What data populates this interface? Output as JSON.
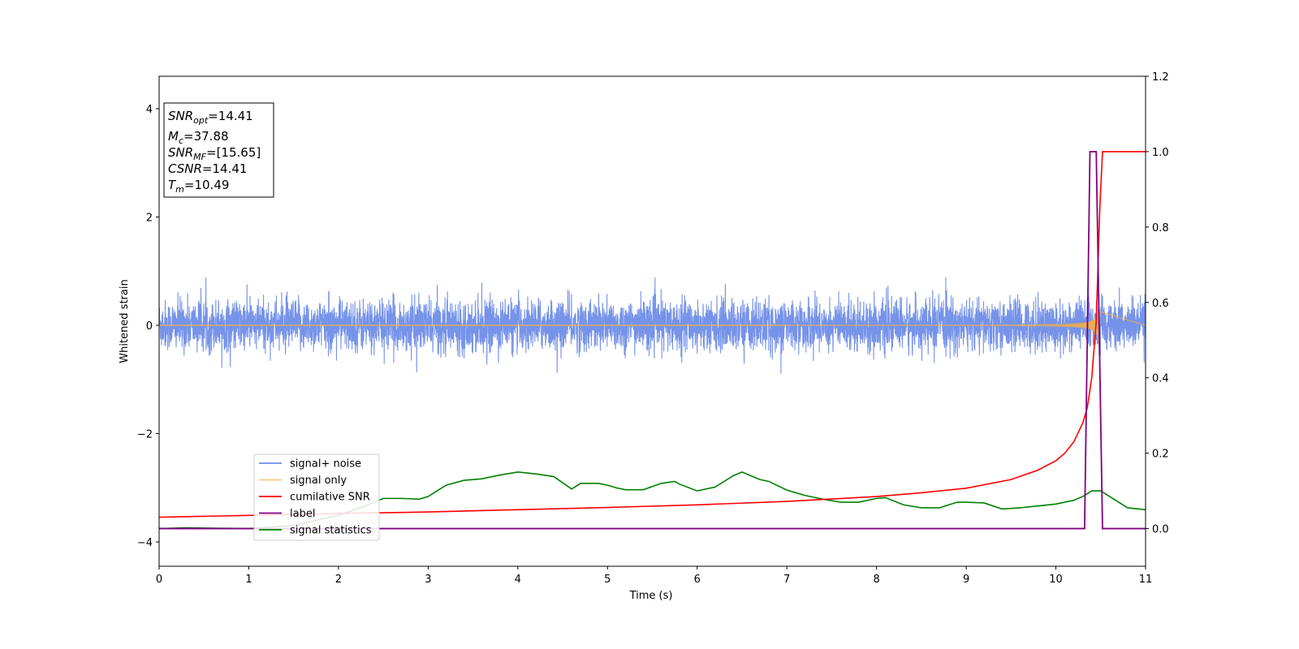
{
  "chart_data": {
    "type": "line",
    "xlabel": "Time (s)",
    "ylabel": "Whitened strain",
    "y2label": "",
    "xlim": [
      0,
      11
    ],
    "ylim": [
      -4.45,
      4.6
    ],
    "y2lim": [
      -0.1,
      1.2
    ],
    "xticks": [
      0,
      1,
      2,
      3,
      4,
      5,
      6,
      7,
      8,
      9,
      10,
      11
    ],
    "yticks": [
      -4,
      -2,
      0,
      2,
      4
    ],
    "yticklabels": [
      "−4",
      "−2",
      "0",
      "2",
      "4"
    ],
    "y2ticks": [
      0.0,
      0.2,
      0.4,
      0.6,
      0.8,
      1.0,
      1.2
    ],
    "y2ticklabels": [
      "0.0",
      "0.2",
      "0.4",
      "0.6",
      "0.8",
      "1.0",
      "1.2"
    ],
    "grid": false,
    "legend_position": "lower-left",
    "annotation": {
      "snr_opt": {
        "symbol": "SNR",
        "sub": "opt",
        "value": "=14.41"
      },
      "mc": {
        "symbol": "M",
        "sub": "c",
        "value": "=37.88"
      },
      "snr_mf": {
        "symbol": "SNR",
        "sub": "MF",
        "value": "=[15.65]"
      },
      "csnr": {
        "symbol": "CSNR",
        "sub": "",
        "value": "=14.41"
      },
      "tm": {
        "symbol": "T",
        "sub": "m",
        "value": "=10.49"
      }
    },
    "series": [
      {
        "name": "signal+ noise",
        "axis": "left",
        "color": "#6f8de8",
        "description": "noisy whitened strain, approx. amplitude ±0.55 with peaks to about ±1.1",
        "amplitude": 0.55,
        "x_start": 0,
        "x_end": 11
      },
      {
        "name": "signal only",
        "axis": "left",
        "color": "#f5b041",
        "description": "chirp waveform growing toward merger near t=10.49",
        "merger_time": 10.49,
        "peak_amplitude": 0.6
      },
      {
        "name": "cumilative SNR",
        "axis": "right",
        "color": "#ff0000",
        "x": [
          0,
          1,
          2,
          3,
          4,
          5,
          6,
          7,
          8,
          8.5,
          9,
          9.5,
          9.8,
          10.0,
          10.1,
          10.2,
          10.3,
          10.35,
          10.4,
          10.45,
          10.49,
          10.52,
          11
        ],
        "y": [
          0.03,
          0.035,
          0.04,
          0.044,
          0.05,
          0.056,
          0.063,
          0.072,
          0.085,
          0.095,
          0.107,
          0.13,
          0.155,
          0.18,
          0.2,
          0.23,
          0.28,
          0.32,
          0.4,
          0.55,
          0.85,
          1.0,
          1.0
        ]
      },
      {
        "name": "label",
        "axis": "right",
        "color": "#800080",
        "x": [
          0,
          10.32,
          10.38,
          10.45,
          10.52,
          11
        ],
        "y": [
          0,
          0,
          1.0,
          1.0,
          0,
          0
        ]
      },
      {
        "name": "signal statistics",
        "axis": "right",
        "color": "#008000",
        "x": [
          0,
          0.3,
          1.0,
          1.5,
          2.0,
          2.3,
          2.5,
          2.7,
          2.9,
          3.0,
          3.1,
          3.2,
          3.4,
          3.6,
          3.8,
          4.0,
          4.2,
          4.4,
          4.6,
          4.7,
          4.9,
          5.0,
          5.1,
          5.2,
          5.4,
          5.6,
          5.75,
          5.8,
          6.0,
          6.2,
          6.4,
          6.5,
          6.7,
          6.8,
          7.0,
          7.2,
          7.4,
          7.6,
          7.8,
          8.0,
          8.1,
          8.3,
          8.5,
          8.7,
          8.9,
          9.0,
          9.2,
          9.4,
          9.6,
          9.8,
          10.0,
          10.2,
          10.3,
          10.4,
          10.5,
          10.6,
          10.8,
          11.0
        ],
        "y": [
          0.0,
          0.002,
          0.0,
          0.008,
          0.035,
          0.06,
          0.08,
          0.08,
          0.078,
          0.085,
          0.1,
          0.115,
          0.128,
          0.132,
          0.142,
          0.15,
          0.145,
          0.138,
          0.105,
          0.12,
          0.12,
          0.115,
          0.108,
          0.103,
          0.103,
          0.12,
          0.125,
          0.118,
          0.1,
          0.11,
          0.14,
          0.15,
          0.13,
          0.125,
          0.102,
          0.088,
          0.078,
          0.07,
          0.07,
          0.08,
          0.082,
          0.063,
          0.055,
          0.055,
          0.07,
          0.07,
          0.068,
          0.052,
          0.055,
          0.06,
          0.065,
          0.075,
          0.085,
          0.1,
          0.1,
          0.085,
          0.055,
          0.05
        ]
      }
    ]
  }
}
